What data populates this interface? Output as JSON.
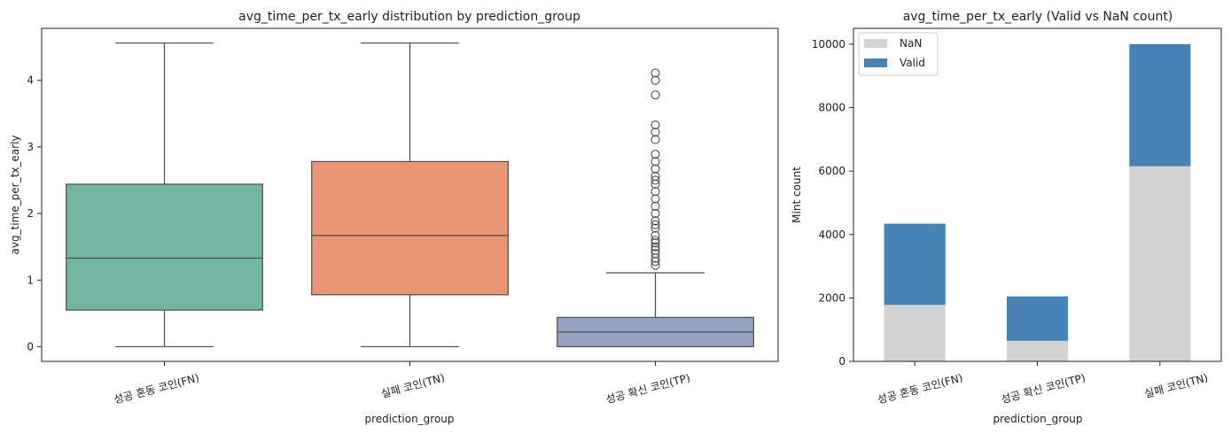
{
  "chart_data": [
    {
      "type": "box",
      "title": "avg_time_per_tx_early distribution by prediction_group",
      "xlabel": "prediction_group",
      "ylabel": "avg_time_per_tx_early",
      "ylim": [
        -0.22,
        4.78
      ],
      "yticks": [
        0,
        1,
        2,
        3,
        4
      ],
      "categories": [
        "성공 혼동 코인(FN)",
        "실패 코인(TN)",
        "성공 확신 코인(TP)"
      ],
      "colors": [
        "#72b6a1",
        "#e99675",
        "#95a3c3"
      ],
      "boxes": [
        {
          "whisker_low": 0.0,
          "q1": 0.55,
          "median": 1.33,
          "q3": 2.44,
          "whisker_high": 4.56,
          "outliers": []
        },
        {
          "whisker_low": 0.0,
          "q1": 0.78,
          "median": 1.67,
          "q3": 2.78,
          "whisker_high": 4.56,
          "outliers": []
        },
        {
          "whisker_low": 0.0,
          "q1": 0.0,
          "median": 0.22,
          "q3": 0.44,
          "whisker_high": 1.11,
          "outliers": [
            1.22,
            1.28,
            1.33,
            1.4,
            1.45,
            1.5,
            1.56,
            1.6,
            1.67,
            1.78,
            1.83,
            1.89,
            2.0,
            2.11,
            2.22,
            2.33,
            2.44,
            2.5,
            2.56,
            2.67,
            2.78,
            2.89,
            3.11,
            3.22,
            3.33,
            3.78,
            4.0,
            4.11
          ]
        }
      ],
      "grid": false
    },
    {
      "type": "bar",
      "stacked": true,
      "title": "avg_time_per_tx_early (Valid vs NaN count)",
      "xlabel": "prediction_group",
      "ylabel": "Mint count",
      "ylim": [
        0,
        10500
      ],
      "yticks": [
        0,
        2000,
        4000,
        6000,
        8000,
        10000
      ],
      "categories": [
        "성공 혼동 코인(FN)",
        "성공 확신 코인(TP)",
        "실패 코인(TN)"
      ],
      "series": [
        {
          "name": "NaN",
          "color": "#d3d3d3",
          "values": [
            1780,
            650,
            6150
          ]
        },
        {
          "name": "Valid",
          "color": "#4682b4",
          "values": [
            2560,
            1400,
            3850
          ]
        }
      ],
      "legend_position": "top-left",
      "grid": false
    }
  ]
}
